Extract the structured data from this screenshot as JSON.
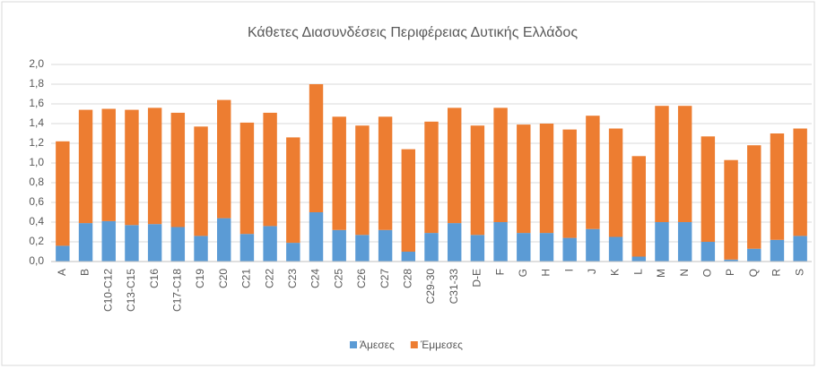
{
  "chart_data": {
    "type": "stacked_bar",
    "title": "Κάθετες Διασυνδέσεις Περιφέρειας Δυτικής Ελλάδος",
    "categories": [
      "A",
      "B",
      "C10-C12",
      "C13-C15",
      "C16",
      "C17-C18",
      "C19",
      "C20",
      "C21",
      "C22",
      "C23",
      "C24",
      "C25",
      "C26",
      "C27",
      "C28",
      "C29-30",
      "C31-33",
      "D-E",
      "F",
      "G",
      "H",
      "I",
      "J",
      "K",
      "L",
      "M",
      "N",
      "O",
      "P",
      "Q",
      "R",
      "S"
    ],
    "series": [
      {
        "name": "Άμεσες",
        "color": "#5b9bd5",
        "values": [
          0.16,
          0.39,
          0.41,
          0.37,
          0.38,
          0.35,
          0.26,
          0.44,
          0.28,
          0.36,
          0.19,
          0.5,
          0.32,
          0.27,
          0.32,
          0.1,
          0.29,
          0.39,
          0.27,
          0.4,
          0.29,
          0.29,
          0.24,
          0.33,
          0.25,
          0.05,
          0.4,
          0.4,
          0.2,
          0.02,
          0.13,
          0.22,
          0.26
        ]
      },
      {
        "name": "Έμμεσες",
        "color": "#ed7d31",
        "values": [
          1.06,
          1.15,
          1.14,
          1.17,
          1.18,
          1.16,
          1.11,
          1.2,
          1.13,
          1.15,
          1.07,
          1.3,
          1.15,
          1.11,
          1.15,
          1.04,
          1.13,
          1.17,
          1.11,
          1.16,
          1.1,
          1.11,
          1.1,
          1.15,
          1.1,
          1.02,
          1.18,
          1.18,
          1.07,
          1.01,
          1.05,
          1.08,
          1.09
        ]
      }
    ],
    "ylim": [
      0,
      2
    ],
    "yticks": [
      {
        "value": 0,
        "label": "0,0"
      },
      {
        "value": 0.2,
        "label": "0,2"
      },
      {
        "value": 0.4,
        "label": "0,4"
      },
      {
        "value": 0.6,
        "label": "0,6"
      },
      {
        "value": 0.8,
        "label": "0,8"
      },
      {
        "value": 1,
        "label": "1,0"
      },
      {
        "value": 1.2,
        "label": "1,2"
      },
      {
        "value": 1.4,
        "label": "1,4"
      },
      {
        "value": 1.6,
        "label": "1,6"
      },
      {
        "value": 1.8,
        "label": "1,8"
      },
      {
        "value": 2,
        "label": "2,0"
      }
    ],
    "grid": true,
    "legend": "bottom"
  }
}
